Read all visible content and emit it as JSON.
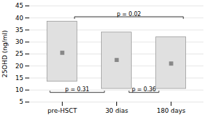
{
  "chart_data": {
    "type": "bar",
    "categories": [
      "pre-HSCT",
      "30 dias",
      "180 days"
    ],
    "values": [
      25.5,
      22.5,
      21.0
    ],
    "bar_bottoms": [
      13.5,
      10.5,
      10.5
    ],
    "bar_tops": [
      38.5,
      34.0,
      32.0
    ],
    "color": "#e0e0e0",
    "marker": "square",
    "ylabel": "25OHD (ng/ml)",
    "ylim": [
      5,
      45
    ],
    "yticks": [
      5,
      10,
      15,
      20,
      25,
      30,
      35,
      40,
      45
    ],
    "grid": true,
    "annotations": [
      {
        "text": "p = 0.31",
        "from": "pre-HSCT",
        "to": "30 dias",
        "y": 9.0
      },
      {
        "text": "p = 0.36",
        "from": "30 dias",
        "to": "180 days",
        "y": 9.0
      },
      {
        "text": "p = 0.02",
        "from": "pre-HSCT",
        "to": "180 days",
        "y": 40.5
      }
    ]
  }
}
